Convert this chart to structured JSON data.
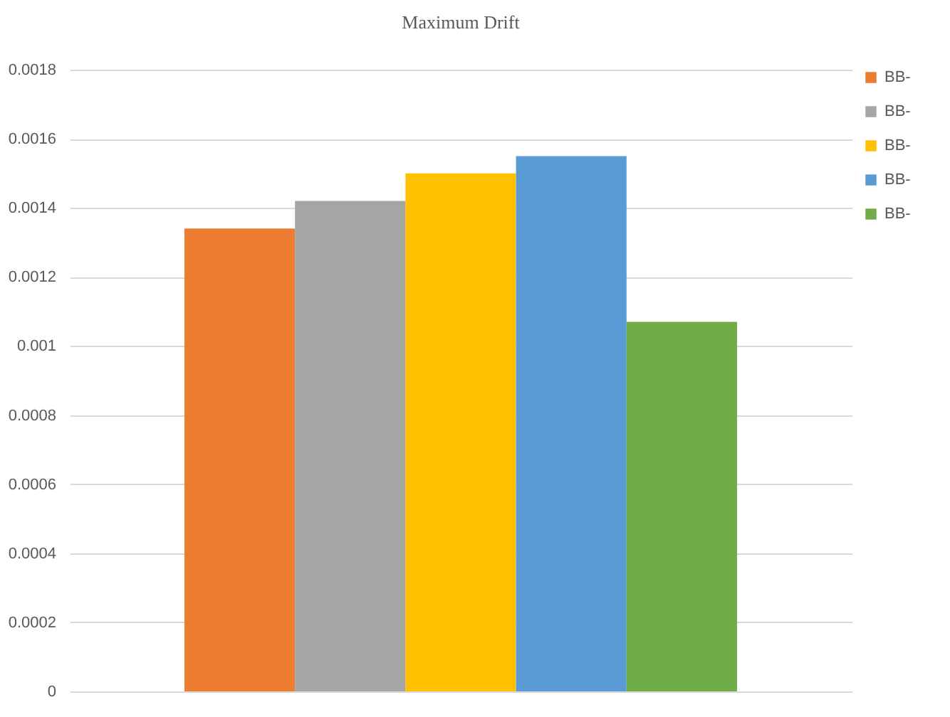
{
  "chart_data": {
    "type": "bar",
    "title": "Maximum Drift",
    "categories": [
      null
    ],
    "series": [
      {
        "name": "BB-",
        "color": "#ed7d31",
        "values": [
          0.00134
        ]
      },
      {
        "name": "BB-",
        "color": "#a5a5a5",
        "values": [
          0.00142
        ]
      },
      {
        "name": "BB-",
        "color": "#ffc000",
        "values": [
          0.0015
        ]
      },
      {
        "name": "BB-",
        "color": "#5b9bd5",
        "values": [
          0.00155
        ]
      },
      {
        "name": "BB-",
        "color": "#70ad47",
        "values": [
          0.00107
        ]
      }
    ],
    "ylim": [
      0,
      0.0018
    ],
    "yticks": [
      0,
      0.0002,
      0.0004,
      0.0006,
      0.0008,
      0.001,
      0.0012,
      0.0014,
      0.0016,
      0.0018
    ],
    "grid": "y",
    "legend": "right"
  }
}
